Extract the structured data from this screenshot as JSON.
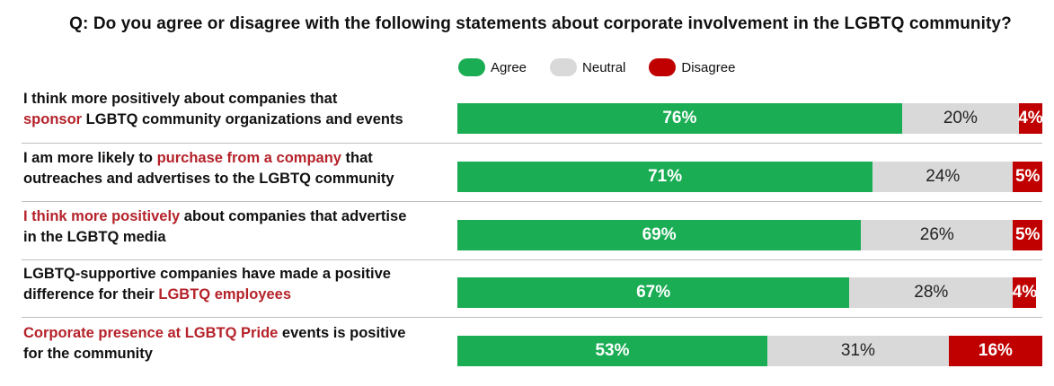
{
  "chart_data": {
    "type": "bar",
    "orientation": "horizontal",
    "stacked": true,
    "title": "Q: Do you agree or disagree with the following statements about corporate involvement in the LGBTQ community?",
    "legend": [
      "Agree",
      "Neutral",
      "Disagree"
    ],
    "legend_position": "top",
    "colors": {
      "Agree": "#1aad54",
      "Neutral": "#d9d9d9",
      "Disagree": "#c00000",
      "highlight_text": "#b5222a"
    },
    "categories": [
      [
        {
          "t": "I think more positively about companies that",
          "h": false
        },
        {
          "t": "\n",
          "h": false
        },
        {
          "t": "sponsor",
          "h": true
        },
        {
          "t": " LGBTQ community organizations and events",
          "h": false
        }
      ],
      [
        {
          "t": "I am more likely to ",
          "h": false
        },
        {
          "t": "purchase from a company",
          "h": true
        },
        {
          "t": " that",
          "h": false
        },
        {
          "t": "\n",
          "h": false
        },
        {
          "t": "outreaches and advertises to the LGBTQ community",
          "h": false
        }
      ],
      [
        {
          "t": "I think more positively",
          "h": true
        },
        {
          "t": " about companies that advertise",
          "h": false
        },
        {
          "t": "\n",
          "h": false
        },
        {
          "t": "in the LGBTQ media",
          "h": false
        }
      ],
      [
        {
          "t": "LGBTQ-supportive companies have made a positive",
          "h": false
        },
        {
          "t": "\n",
          "h": false
        },
        {
          "t": "difference for their ",
          "h": false
        },
        {
          "t": "LGBTQ employees",
          "h": true
        }
      ],
      [
        {
          "t": "Corporate presence at LGBTQ Pride",
          "h": true
        },
        {
          "t": " events is positive",
          "h": false
        },
        {
          "t": "\n",
          "h": false
        },
        {
          "t": "for the community",
          "h": false
        }
      ]
    ],
    "series": [
      {
        "name": "Agree",
        "values": [
          76,
          71,
          69,
          67,
          53
        ]
      },
      {
        "name": "Neutral",
        "values": [
          20,
          24,
          26,
          28,
          31
        ]
      },
      {
        "name": "Disagree",
        "values": [
          4,
          5,
          5,
          4,
          16
        ]
      }
    ],
    "value_suffix": "%",
    "xlim": [
      0,
      100
    ]
  }
}
